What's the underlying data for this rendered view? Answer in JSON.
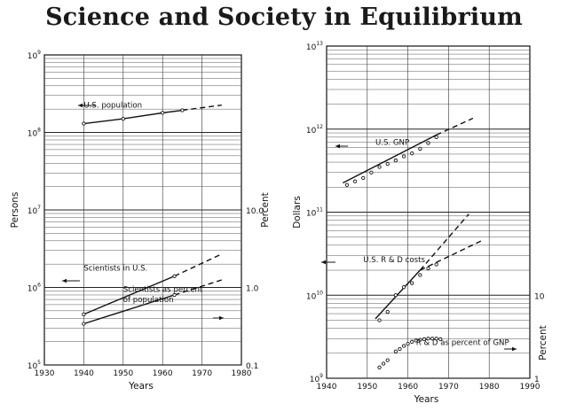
{
  "title": "Science and Society in Equilibrium",
  "chart_data": [
    {
      "id": "left",
      "type": "line",
      "x_scale": "linear",
      "y_scale": "log",
      "xlim": [
        1930,
        1980
      ],
      "ylim": [
        100000,
        1000000000
      ],
      "xticks": [
        "1930",
        "1940",
        "1950",
        "1960",
        "1970",
        "1980"
      ],
      "yticks": [
        {
          "base": "10",
          "exp": "5",
          "value": 100000
        },
        {
          "base": "10",
          "exp": "6",
          "value": 1000000
        },
        {
          "base": "10",
          "exp": "7",
          "value": 10000000
        },
        {
          "base": "10",
          "exp": "8",
          "value": 100000000
        },
        {
          "base": "10",
          "exp": "9",
          "value": 1000000000
        }
      ],
      "xlabel": "Years",
      "ylabel": "Persons",
      "y2label": "Percent",
      "y2ticks": [
        {
          "label": "0.1",
          "value": 100000
        },
        {
          "label": "1.0",
          "value": 1000000
        },
        {
          "label": "10.0",
          "value": 10000000
        }
      ],
      "grid": true,
      "series": [
        {
          "name": "U.S. population",
          "points": [
            [
              1940,
              130000000
            ],
            [
              1950,
              150000000
            ],
            [
              1960,
              179000000
            ],
            [
              1965,
              193000000
            ]
          ],
          "extrapolation": [
            [
              1965,
              193000000
            ],
            [
              1975,
              225000000
            ]
          ]
        },
        {
          "name": "Scientists in U.S.",
          "points": [
            [
              1940,
              450000
            ],
            [
              1963,
              1400000
            ]
          ],
          "extrapolation": [
            [
              1963,
              1400000
            ],
            [
              1975,
              2700000
            ]
          ]
        },
        {
          "name": "Scientists as percent of population",
          "points": [
            [
              1940,
              340000
            ],
            [
              1963,
              800000
            ]
          ],
          "extrapolation": [
            [
              1963,
              800000
            ],
            [
              1975,
              1250000
            ]
          ]
        }
      ],
      "annotations": [
        {
          "text": "U.S. population",
          "x": 1940,
          "y": 210000000
        },
        {
          "text": "Scientists in U.S.",
          "x": 1940,
          "y": 1650000
        },
        {
          "text": "Scientists as percent",
          "x": 1950,
          "y": 880000
        },
        {
          "text": "of population",
          "x": 1950,
          "y": 650000
        }
      ]
    },
    {
      "id": "right",
      "type": "line",
      "x_scale": "linear",
      "y_scale": "log",
      "xlim": [
        1940,
        1990
      ],
      "ylim": [
        1000000000,
        10000000000000
      ],
      "xticks": [
        "1940",
        "1950",
        "1960",
        "1970",
        "1980",
        "1990"
      ],
      "yticks": [
        {
          "base": "10",
          "exp": "9",
          "value": 1000000000
        },
        {
          "base": "10",
          "exp": "10",
          "value": 10000000000
        },
        {
          "base": "10",
          "exp": "11",
          "value": 100000000000
        },
        {
          "base": "10",
          "exp": "12",
          "value": 1000000000000
        },
        {
          "base": "10",
          "exp": "13",
          "value": 10000000000000
        }
      ],
      "xlabel": "Years",
      "ylabel": "Dollars",
      "y2label": "Percent",
      "y2ticks": [
        {
          "label": "1",
          "value": 1000000000
        },
        {
          "label": "10",
          "value": 10000000000
        }
      ],
      "grid": true,
      "series": [
        {
          "name": "U.S. GNP",
          "points": [
            [
              1945,
              213000000000
            ],
            [
              1947,
              235000000000
            ],
            [
              1949,
              258000000000
            ],
            [
              1951,
              300000000000
            ],
            [
              1953,
              350000000000
            ],
            [
              1955,
              380000000000
            ],
            [
              1957,
              420000000000
            ],
            [
              1959,
              470000000000
            ],
            [
              1961,
              510000000000
            ],
            [
              1963,
              580000000000
            ],
            [
              1965,
              680000000000
            ],
            [
              1967,
              800000000000
            ]
          ],
          "fit": [
            [
              1944,
              225000000000
            ],
            [
              1967,
              850000000000
            ]
          ],
          "extrapolation": [
            [
              1967,
              850000000000
            ],
            [
              1976,
              1350000000000
            ]
          ]
        },
        {
          "name": "U.S. R & D costs",
          "points": [
            [
              1953,
              5000000000
            ],
            [
              1955,
              6300000000
            ],
            [
              1957,
              10000000000
            ],
            [
              1959,
              12500000000
            ],
            [
              1961,
              14000000000
            ],
            [
              1963,
              17500000000
            ],
            [
              1965,
              21000000000
            ],
            [
              1967,
              23500000000
            ]
          ],
          "fit": [
            [
              1952,
              5200000000
            ],
            [
              1963,
              20000000000
            ]
          ],
          "extrapolation": [
            [
              1963,
              20000000000
            ],
            [
              1975,
              95000000000
            ]
          ],
          "extrapolation_low": [
            [
              1963,
              20000000000
            ],
            [
              1978,
              45000000000
            ]
          ]
        },
        {
          "name": "R & D as percent of GNP",
          "points": [
            [
              1953,
              1350000000
            ],
            [
              1954,
              1500000000
            ],
            [
              1955,
              1650000000
            ],
            [
              1957,
              2100000000
            ],
            [
              1958,
              2250000000
            ],
            [
              1959,
              2450000000
            ],
            [
              1960,
              2600000000
            ],
            [
              1961,
              2750000000
            ],
            [
              1962,
              2850000000
            ],
            [
              1963,
              2900000000
            ],
            [
              1964,
              2950000000
            ],
            [
              1965,
              3000000000
            ],
            [
              1966,
              3000000000
            ],
            [
              1967,
              3000000000
            ],
            [
              1968,
              2950000000
            ]
          ]
        }
      ],
      "annotations": [
        {
          "text": "U.S. GNP",
          "x": 1952,
          "y": 650000000000
        },
        {
          "text": "U.S. R & D costs",
          "x": 1949,
          "y": 25000000000
        },
        {
          "text": "R & D as percent of GNP",
          "x": 1962,
          "y": 2500000000
        }
      ]
    }
  ]
}
